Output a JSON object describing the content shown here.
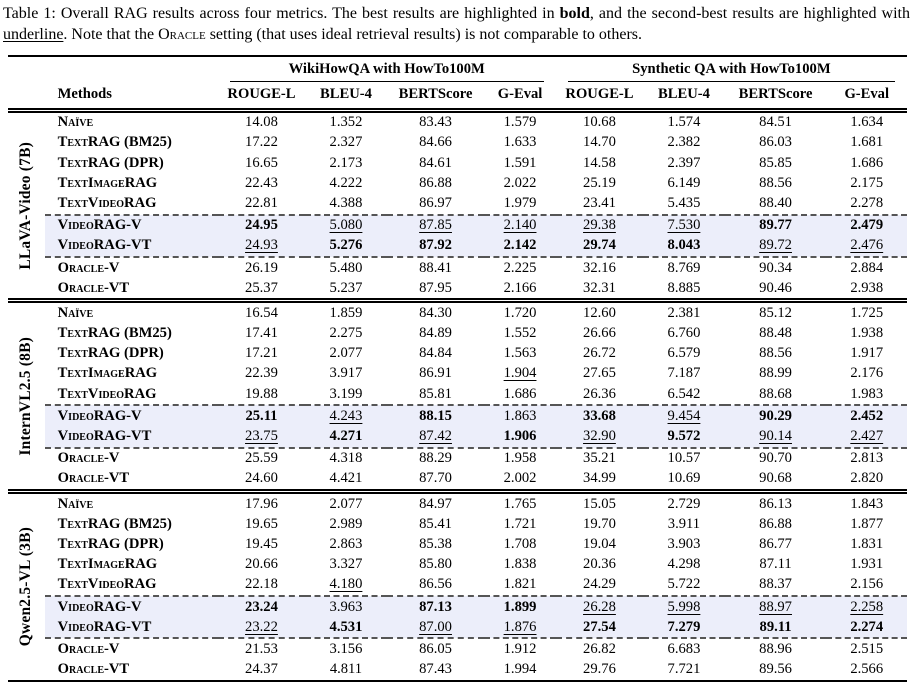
{
  "caption": {
    "segments": [
      {
        "text": "Table 1: Overall RAG results across four metrics. The best results are highlighted in ",
        "style": ""
      },
      {
        "text": "bold",
        "style": "b"
      },
      {
        "text": ", and the second-best results are highlighted with ",
        "style": ""
      },
      {
        "text": "underline",
        "style": "u"
      },
      {
        "text": ". Note that the ",
        "style": ""
      },
      {
        "text": "Oracle",
        "style": "sc"
      },
      {
        "text": " setting (that uses ideal retrieval results) is not comparable to others.",
        "style": ""
      }
    ]
  },
  "table": {
    "methods_header": "Methods",
    "highlight_color": "#eceefa",
    "groups": [
      {
        "label": "WikiHowQA with HowTo100M",
        "metrics": [
          "ROUGE-L",
          "BLEU-4",
          "BERTScore",
          "G-Eval"
        ]
      },
      {
        "label": "Synthetic QA with HowTo100M",
        "metrics": [
          "ROUGE-L",
          "BLEU-4",
          "BERTScore",
          "G-Eval"
        ]
      }
    ],
    "blocks": [
      {
        "model": "LLaVA-Video (7B)",
        "rows": [
          {
            "method": "Naïve",
            "group": "baseline",
            "values": [
              "14.08",
              "1.352",
              "83.43",
              "1.579",
              "10.68",
              "1.574",
              "84.51",
              "1.634"
            ]
          },
          {
            "method": "TextRAG (BM25)",
            "group": "baseline",
            "values": [
              "17.22",
              "2.327",
              "84.66",
              "1.633",
              "14.70",
              "2.382",
              "86.03",
              "1.681"
            ]
          },
          {
            "method": "TextRAG (DPR)",
            "group": "baseline",
            "values": [
              "16.65",
              "2.173",
              "84.61",
              "1.591",
              "14.58",
              "2.397",
              "85.85",
              "1.686"
            ]
          },
          {
            "method": "TextImageRAG",
            "group": "baseline",
            "values": [
              "22.43",
              "4.222",
              "86.88",
              "2.022",
              "25.19",
              "6.149",
              "88.56",
              "2.175"
            ]
          },
          {
            "method": "TextVideoRAG",
            "group": "baseline",
            "values": [
              "22.81",
              "4.388",
              "86.97",
              "1.979",
              "23.41",
              "5.435",
              "88.40",
              "2.278"
            ]
          },
          {
            "method": "VideoRAG-V",
            "group": "highlight",
            "values": [
              "24.95",
              "5.080",
              "87.85",
              "2.140",
              "29.38",
              "7.530",
              "89.77",
              "2.479"
            ],
            "styles": [
              "b",
              "u",
              "u",
              "u",
              "u",
              "u",
              "b",
              "b"
            ]
          },
          {
            "method": "VideoRAG-VT",
            "group": "highlight",
            "values": [
              "24.93",
              "5.276",
              "87.92",
              "2.142",
              "29.74",
              "8.043",
              "89.72",
              "2.476"
            ],
            "styles": [
              "u",
              "b",
              "b",
              "b",
              "b",
              "b",
              "u",
              "u"
            ]
          },
          {
            "method": "Oracle-V",
            "group": "oracle",
            "values": [
              "26.19",
              "5.480",
              "88.41",
              "2.225",
              "32.16",
              "8.769",
              "90.34",
              "2.884"
            ]
          },
          {
            "method": "Oracle-VT",
            "group": "oracle",
            "values": [
              "25.37",
              "5.237",
              "87.95",
              "2.166",
              "32.31",
              "8.885",
              "90.46",
              "2.938"
            ]
          }
        ]
      },
      {
        "model": "InternVL2.5 (8B)",
        "rows": [
          {
            "method": "Naïve",
            "group": "baseline",
            "values": [
              "16.54",
              "1.859",
              "84.30",
              "1.720",
              "12.60",
              "2.381",
              "85.12",
              "1.725"
            ]
          },
          {
            "method": "TextRAG (BM25)",
            "group": "baseline",
            "values": [
              "17.41",
              "2.275",
              "84.89",
              "1.552",
              "26.66",
              "6.760",
              "88.48",
              "1.938"
            ]
          },
          {
            "method": "TextRAG (DPR)",
            "group": "baseline",
            "values": [
              "17.21",
              "2.077",
              "84.84",
              "1.563",
              "26.72",
              "6.579",
              "88.56",
              "1.917"
            ]
          },
          {
            "method": "TextImageRAG",
            "group": "baseline",
            "values": [
              "22.39",
              "3.917",
              "86.91",
              "1.904",
              "27.65",
              "7.187",
              "88.99",
              "2.176"
            ],
            "styles": [
              "",
              "",
              "",
              "u",
              "",
              "",
              "",
              ""
            ]
          },
          {
            "method": "TextVideoRAG",
            "group": "baseline",
            "values": [
              "19.88",
              "3.199",
              "85.81",
              "1.686",
              "26.36",
              "6.542",
              "88.68",
              "1.983"
            ]
          },
          {
            "method": "VideoRAG-V",
            "group": "highlight",
            "values": [
              "25.11",
              "4.243",
              "88.15",
              "1.863",
              "33.68",
              "9.454",
              "90.29",
              "2.452"
            ],
            "styles": [
              "b",
              "u",
              "b",
              "",
              "b",
              "u",
              "b",
              "b"
            ]
          },
          {
            "method": "VideoRAG-VT",
            "group": "highlight",
            "values": [
              "23.75",
              "4.271",
              "87.42",
              "1.906",
              "32.90",
              "9.572",
              "90.14",
              "2.427"
            ],
            "styles": [
              "u",
              "b",
              "u",
              "b",
              "u",
              "b",
              "u",
              "u"
            ]
          },
          {
            "method": "Oracle-V",
            "group": "oracle",
            "values": [
              "25.59",
              "4.318",
              "88.29",
              "1.958",
              "35.21",
              "10.57",
              "90.70",
              "2.813"
            ]
          },
          {
            "method": "Oracle-VT",
            "group": "oracle",
            "values": [
              "24.60",
              "4.421",
              "87.70",
              "2.002",
              "34.99",
              "10.69",
              "90.68",
              "2.820"
            ]
          }
        ]
      },
      {
        "model": "Qwen2.5-VL (3B)",
        "rows": [
          {
            "method": "Naïve",
            "group": "baseline",
            "values": [
              "17.96",
              "2.077",
              "84.97",
              "1.765",
              "15.05",
              "2.729",
              "86.13",
              "1.843"
            ]
          },
          {
            "method": "TextRAG (BM25)",
            "group": "baseline",
            "values": [
              "19.65",
              "2.989",
              "85.41",
              "1.721",
              "19.70",
              "3.911",
              "86.88",
              "1.877"
            ]
          },
          {
            "method": "TextRAG (DPR)",
            "group": "baseline",
            "values": [
              "19.45",
              "2.863",
              "85.38",
              "1.708",
              "19.04",
              "3.903",
              "86.77",
              "1.831"
            ]
          },
          {
            "method": "TextImageRAG",
            "group": "baseline",
            "values": [
              "20.66",
              "3.327",
              "85.80",
              "1.838",
              "20.36",
              "4.298",
              "87.11",
              "1.931"
            ]
          },
          {
            "method": "TextVideoRAG",
            "group": "baseline",
            "values": [
              "22.18",
              "4.180",
              "86.56",
              "1.821",
              "24.29",
              "5.722",
              "88.37",
              "2.156"
            ],
            "styles": [
              "",
              "u",
              "",
              "",
              "",
              "",
              "",
              ""
            ]
          },
          {
            "method": "VideoRAG-V",
            "group": "highlight",
            "values": [
              "23.24",
              "3.963",
              "87.13",
              "1.899",
              "26.28",
              "5.998",
              "88.97",
              "2.258"
            ],
            "styles": [
              "b",
              "",
              "b",
              "b",
              "u",
              "u",
              "u",
              "u"
            ]
          },
          {
            "method": "VideoRAG-VT",
            "group": "highlight",
            "values": [
              "23.22",
              "4.531",
              "87.00",
              "1.876",
              "27.54",
              "7.279",
              "89.11",
              "2.274"
            ],
            "styles": [
              "u",
              "b",
              "u",
              "u",
              "b",
              "b",
              "b",
              "b"
            ]
          },
          {
            "method": "Oracle-V",
            "group": "oracle",
            "values": [
              "21.53",
              "3.156",
              "86.05",
              "1.912",
              "26.82",
              "6.683",
              "88.96",
              "2.515"
            ]
          },
          {
            "method": "Oracle-VT",
            "group": "oracle",
            "values": [
              "24.37",
              "4.811",
              "87.43",
              "1.994",
              "29.76",
              "7.721",
              "89.56",
              "2.566"
            ]
          }
        ]
      }
    ]
  }
}
